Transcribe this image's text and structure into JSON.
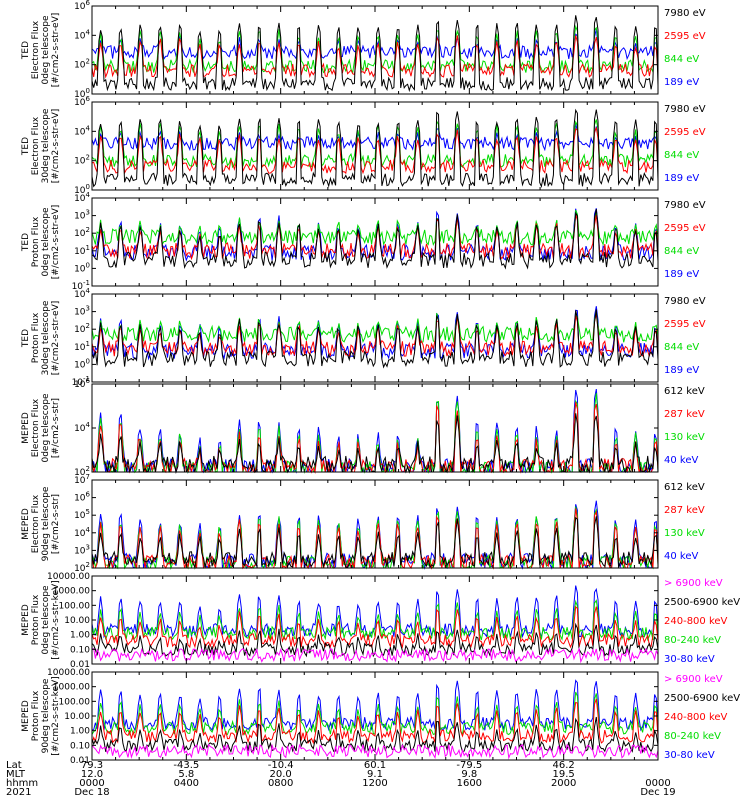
{
  "chart_data": [
    {
      "type": "line",
      "ylabel_lines": [
        "TED",
        "Electron Flux",
        "0deg telescope",
        "[#/cm2-s-str-eV]"
      ],
      "yscale": "log",
      "ylim": [
        1,
        1000000
      ],
      "ytick_labels": [
        "10^0",
        "10^2",
        "10^4",
        "10^6"
      ],
      "ytick_values": [
        1,
        100,
        10000,
        1000000
      ],
      "series": [
        {
          "name": "7980 eV",
          "color": "#000000",
          "base": 5,
          "spikes": [
            30000,
            50000,
            20000,
            60000,
            40000,
            30000,
            40000,
            100000,
            50000,
            60000,
            200000,
            40000
          ]
        },
        {
          "name": "2595 eV",
          "color": "#ff0000",
          "base": 40,
          "spikes": [
            3000,
            5000,
            2000,
            4000,
            3000,
            2000,
            3000,
            8000,
            3000,
            4000,
            10000,
            2000
          ]
        },
        {
          "name": "844 eV",
          "color": "#00dd00",
          "base": 80,
          "spikes": [
            10000,
            20000,
            6000,
            20000,
            10000,
            8000,
            10000,
            30000,
            10000,
            20000,
            50000,
            8000
          ]
        },
        {
          "name": "189 eV",
          "color": "#0000ff",
          "base": 700,
          "spikes": [
            5000,
            8000,
            3000,
            6000,
            4000,
            5000,
            5000,
            10000,
            4000,
            6000,
            20000,
            4000
          ]
        }
      ]
    },
    {
      "type": "line",
      "ylabel_lines": [
        "TED",
        "Electron Flux",
        "30deg telescope",
        "[#/cm2-s-str-eV]"
      ],
      "yscale": "log",
      "ylim": [
        1,
        1000000
      ],
      "ytick_labels": [
        "10^0",
        "10^2",
        "10^4",
        "10^6"
      ],
      "ytick_values": [
        1,
        100,
        10000,
        1000000
      ],
      "series": [
        {
          "name": "7980 eV",
          "color": "#000000",
          "base": 5,
          "spikes": [
            50000,
            60000,
            30000,
            80000,
            50000,
            40000,
            50000,
            200000,
            60000,
            80000,
            300000,
            50000
          ]
        },
        {
          "name": "2595 eV",
          "color": "#ff0000",
          "base": 40,
          "spikes": [
            5000,
            6000,
            3000,
            5000,
            4000,
            3000,
            4000,
            10000,
            4000,
            5000,
            20000,
            3000
          ]
        },
        {
          "name": "844 eV",
          "color": "#00dd00",
          "base": 100,
          "spikes": [
            20000,
            30000,
            10000,
            30000,
            20000,
            10000,
            20000,
            50000,
            20000,
            30000,
            80000,
            10000
          ]
        },
        {
          "name": "189 eV",
          "color": "#0000ff",
          "base": 1500,
          "spikes": [
            8000,
            10000,
            5000,
            8000,
            6000,
            6000,
            7000,
            20000,
            6000,
            8000,
            30000,
            5000
          ]
        }
      ]
    },
    {
      "type": "line",
      "ylabel_lines": [
        "TED",
        "Proton Flux",
        "0deg telescope",
        "[#/cm2-s-str-eV]"
      ],
      "yscale": "log",
      "ylim": [
        0.1,
        10000
      ],
      "ytick_labels": [
        "10^-1",
        "10^0",
        "10^1",
        "10^2",
        "10^3",
        "10^4"
      ],
      "ytick_values": [
        0.1,
        1,
        10,
        100,
        1000,
        10000
      ],
      "series": [
        {
          "name": "7980 eV",
          "color": "#000000",
          "base": 3,
          "spikes": [
            300,
            200,
            100,
            500,
            300,
            200,
            300,
            1000,
            300,
            400,
            2000,
            200
          ]
        },
        {
          "name": "2595 eV",
          "color": "#ff0000",
          "base": 10,
          "spikes": [
            200,
            150,
            80,
            300,
            200,
            150,
            200,
            600,
            200,
            300,
            1000,
            150
          ]
        },
        {
          "name": "844 eV",
          "color": "#00dd00",
          "base": 60,
          "spikes": [
            500,
            400,
            300,
            600,
            400,
            400,
            500,
            1000,
            400,
            500,
            2000,
            400
          ]
        },
        {
          "name": "189 eV",
          "color": "#0000ff",
          "base": 8,
          "spikes": [
            400,
            300,
            200,
            800,
            400,
            300,
            400,
            1500,
            400,
            500,
            3000,
            300
          ]
        }
      ]
    },
    {
      "type": "line",
      "ylabel_lines": [
        "TED",
        "Proton Flux",
        "30deg telescope",
        "[#/cm2-s-str-eV]"
      ],
      "yscale": "log",
      "ylim": [
        0.1,
        10000
      ],
      "ytick_labels": [
        "10^-1",
        "10^0",
        "10^1",
        "10^2",
        "10^3",
        "10^4"
      ],
      "ytick_values": [
        0.1,
        1,
        10,
        100,
        1000,
        10000
      ],
      "series": [
        {
          "name": "7980 eV",
          "color": "#000000",
          "base": 2,
          "spikes": [
            200,
            150,
            100,
            300,
            200,
            150,
            200,
            600,
            200,
            300,
            1000,
            150
          ]
        },
        {
          "name": "2595 eV",
          "color": "#ff0000",
          "base": 8,
          "spikes": [
            150,
            100,
            60,
            200,
            150,
            100,
            150,
            400,
            150,
            200,
            600,
            100
          ]
        },
        {
          "name": "844 eV",
          "color": "#00dd00",
          "base": 50,
          "spikes": [
            300,
            250,
            200,
            400,
            300,
            250,
            300,
            800,
            300,
            400,
            1000,
            250
          ]
        },
        {
          "name": "189 eV",
          "color": "#0000ff",
          "base": 6,
          "spikes": [
            300,
            200,
            150,
            500,
            300,
            200,
            300,
            1000,
            300,
            400,
            2000,
            200
          ]
        }
      ]
    },
    {
      "type": "line",
      "ylabel_lines": [
        "MEPED",
        "Electron Flux",
        "0deg telescope",
        "[#/cm2-s-str]"
      ],
      "yscale": "log",
      "ylim": [
        100,
        1000000
      ],
      "ytick_labels": [
        "10^2",
        "10^4",
        "10^6"
      ],
      "ytick_values": [
        100,
        10000,
        1000000
      ],
      "series": [
        {
          "name": "612 keV",
          "color": "#000000",
          "base": 200,
          "spikes": [
            5000,
            2000,
            1000,
            3000,
            2000,
            1000,
            2000,
            30000,
            3000,
            2000,
            50000,
            2000
          ]
        },
        {
          "name": "287 keV",
          "color": "#ff0000",
          "base": 150,
          "spikes": [
            20000,
            3000,
            1000,
            5000,
            3000,
            2000,
            2000,
            100000,
            5000,
            3000,
            200000,
            3000
          ]
        },
        {
          "name": "130 keV",
          "color": "#00dd00",
          "base": 110,
          "spikes": [
            30000,
            5000,
            2000,
            10000,
            5000,
            3000,
            3000,
            200000,
            10000,
            5000,
            300000,
            5000
          ]
        },
        {
          "name": "40 keV",
          "color": "#0000ff",
          "base": 140,
          "spikes": [
            40000,
            8000,
            3000,
            20000,
            10000,
            5000,
            5000,
            300000,
            20000,
            10000,
            500000,
            8000
          ]
        }
      ]
    },
    {
      "type": "line",
      "ylabel_lines": [
        "MEPED",
        "Electron Flux",
        "90deg telescope",
        "[#/cm2-s-str]"
      ],
      "yscale": "log",
      "ylim": [
        100,
        10000000
      ],
      "ytick_labels": [
        "10^2",
        "10^3",
        "10^4",
        "10^5",
        "10^6",
        "10^7"
      ],
      "ytick_values": [
        100,
        1000,
        10000,
        100000,
        1000000,
        10000000
      ],
      "series": [
        {
          "name": "612 keV",
          "color": "#000000",
          "base": 300,
          "spikes": [
            10000,
            8000,
            5000,
            20000,
            10000,
            8000,
            10000,
            50000,
            10000,
            20000,
            100000,
            8000
          ]
        },
        {
          "name": "287 keV",
          "color": "#ff0000",
          "base": 200,
          "spikes": [
            30000,
            20000,
            10000,
            50000,
            30000,
            20000,
            30000,
            100000,
            30000,
            50000,
            200000,
            20000
          ]
        },
        {
          "name": "130 keV",
          "color": "#00dd00",
          "base": 180,
          "spikes": [
            50000,
            30000,
            20000,
            80000,
            50000,
            30000,
            50000,
            200000,
            50000,
            80000,
            300000,
            30000
          ]
        },
        {
          "name": "40 keV",
          "color": "#0000ff",
          "base": 250,
          "spikes": [
            100000,
            50000,
            30000,
            100000,
            80000,
            50000,
            80000,
            300000,
            80000,
            100000,
            500000,
            50000
          ]
        }
      ]
    },
    {
      "type": "line",
      "ylabel_lines": [
        "MEPED",
        "Proton Flux",
        "0deg telescope",
        "[#/cm2-s-str-keV]"
      ],
      "yscale": "log",
      "ylim": [
        0.01,
        10000
      ],
      "ytick_labels": [
        "0.01",
        "0.10",
        "1.00",
        "10.00",
        "100.00",
        "1000.00",
        "10000.00"
      ],
      "ytick_values": [
        0.01,
        0.1,
        1,
        10,
        100,
        1000,
        10000
      ],
      "series": [
        {
          "name": "> 6900 keV",
          "color": "#ff00ff",
          "base": 0.04,
          "spikes": [
            0.02,
            0.02,
            0.03,
            0.02,
            0.02,
            0.03,
            0.02,
            0.02,
            0.02,
            0.02,
            0.02,
            0.02
          ]
        },
        {
          "name": "2500-6900 keV",
          "color": "#000000",
          "base": 0.1,
          "spikes": [
            1,
            0.8,
            0.5,
            2,
            1,
            0.8,
            1,
            3,
            1,
            1.5,
            5,
            0.8
          ]
        },
        {
          "name": "240-800 keV",
          "color": "#ff0000",
          "base": 0.4,
          "spikes": [
            20,
            10,
            5,
            30,
            10,
            8,
            10,
            60,
            15,
            20,
            100,
            10
          ]
        },
        {
          "name": "80-240 keV",
          "color": "#00dd00",
          "base": 1.2,
          "spikes": [
            50,
            30,
            20,
            80,
            30,
            20,
            30,
            150,
            40,
            50,
            300,
            30
          ]
        },
        {
          "name": "30-80 keV",
          "color": "#0000ff",
          "base": 2,
          "spikes": [
            300,
            200,
            100,
            500,
            200,
            150,
            200,
            1000,
            300,
            400,
            2000,
            200
          ]
        }
      ]
    },
    {
      "type": "line",
      "ylabel_lines": [
        "MEPED",
        "Proton Flux",
        "90deg telescope",
        "[#/cm2-s-str-keV]"
      ],
      "yscale": "log",
      "ylim": [
        0.01,
        10000
      ],
      "ytick_labels": [
        "0.01",
        "0.10",
        "1.00",
        "10.00",
        "100.00",
        "1000.00",
        "10000.00"
      ],
      "ytick_values": [
        0.01,
        0.1,
        1,
        10,
        100,
        1000,
        10000
      ],
      "series": [
        {
          "name": "> 6900 keV",
          "color": "#ff00ff",
          "base": 0.04,
          "spikes": [
            0.02,
            0.02,
            0.03,
            0.02,
            0.02,
            0.03,
            0.02,
            0.02,
            0.02,
            0.02,
            0.02,
            0.02
          ]
        },
        {
          "name": "2500-6900 keV",
          "color": "#000000",
          "base": 0.1,
          "spikes": [
            2,
            1,
            0.8,
            3,
            1,
            1,
            1,
            5,
            1,
            2,
            8,
            1
          ]
        },
        {
          "name": "240-800 keV",
          "color": "#ff0000",
          "base": 0.4,
          "spikes": [
            30,
            20,
            10,
            50,
            20,
            10,
            20,
            80,
            20,
            30,
            150,
            20
          ]
        },
        {
          "name": "80-240 keV",
          "color": "#00dd00",
          "base": 1.5,
          "spikes": [
            80,
            50,
            30,
            100,
            50,
            30,
            50,
            200,
            50,
            80,
            400,
            50
          ]
        },
        {
          "name": "30-80 keV",
          "color": "#0000ff",
          "base": 3,
          "spikes": [
            500,
            300,
            200,
            800,
            300,
            200,
            300,
            2000,
            500,
            600,
            3000,
            300
          ]
        }
      ]
    }
  ],
  "x_axis": {
    "row_labels": [
      "Lat",
      "MLT",
      "hhmm",
      "2021"
    ],
    "ticks": [
      {
        "hour": 0,
        "lat": "79.3",
        "mlt": "12.0",
        "hhmm": "0000",
        "date": "Dec 18"
      },
      {
        "hour": 4,
        "lat": "-43.5",
        "mlt": "5.8",
        "hhmm": "0400",
        "date": ""
      },
      {
        "hour": 8,
        "lat": "-10.4",
        "mlt": "20.0",
        "hhmm": "0800",
        "date": ""
      },
      {
        "hour": 12,
        "lat": "60.1",
        "mlt": "9.1",
        "hhmm": "1200",
        "date": ""
      },
      {
        "hour": 16,
        "lat": "-79.5",
        "mlt": "9.8",
        "hhmm": "1600",
        "date": ""
      },
      {
        "hour": 20,
        "lat": "46.2",
        "mlt": "19.5",
        "hhmm": "2000",
        "date": ""
      },
      {
        "hour": 24,
        "lat": "",
        "mlt": "",
        "hhmm": "0000",
        "date": "Dec 19"
      }
    ],
    "range_hours": [
      0,
      24
    ]
  }
}
